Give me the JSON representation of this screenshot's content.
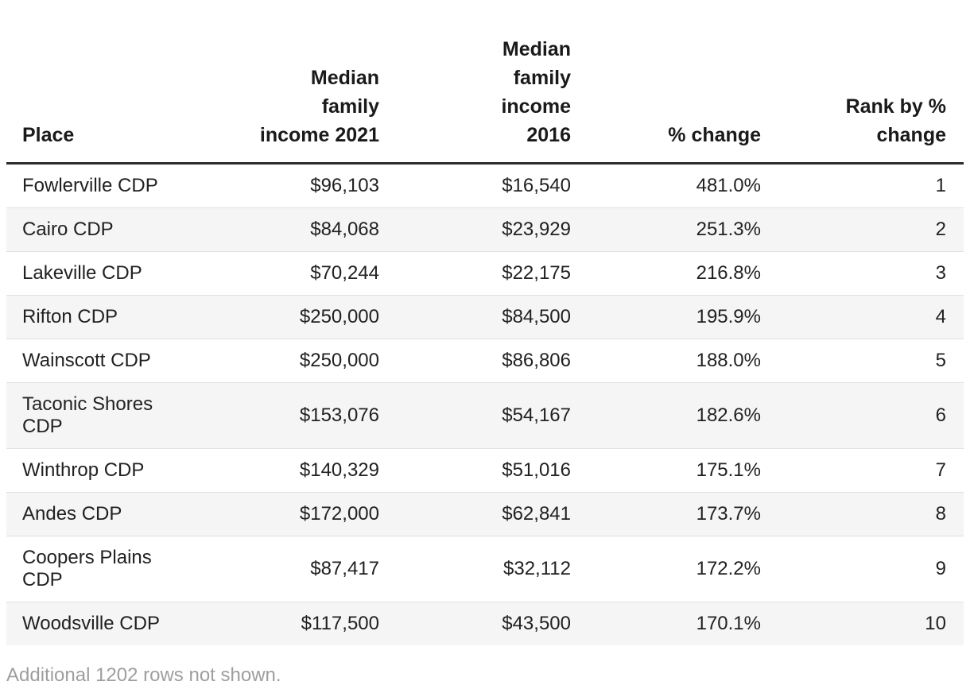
{
  "table": {
    "columns": [
      {
        "id": "place",
        "label": "Place",
        "full_name": "Place",
        "align": "left"
      },
      {
        "id": "income2021",
        "label": "Median\nfamily\nincome 2021",
        "full_name": "Median family income 2021",
        "align": "right"
      },
      {
        "id": "income2016",
        "label": "Median\nfamily\nincome\n2016",
        "full_name": "Median family income 2016",
        "align": "right"
      },
      {
        "id": "pctchange",
        "label": "% change",
        "full_name": "% change",
        "align": "right"
      },
      {
        "id": "rank",
        "label": "Rank by %\nchange",
        "full_name": "Rank by % change",
        "align": "right"
      }
    ],
    "rows": [
      [
        "Fowlerville CDP",
        "$96,103",
        "$16,540",
        "481.0%",
        "1"
      ],
      [
        "Cairo CDP",
        "$84,068",
        "$23,929",
        "251.3%",
        "2"
      ],
      [
        "Lakeville CDP",
        "$70,244",
        "$22,175",
        "216.8%",
        "3"
      ],
      [
        "Rifton CDP",
        "$250,000",
        "$84,500",
        "195.9%",
        "4"
      ],
      [
        "Wainscott CDP",
        "$250,000",
        "$86,806",
        "188.0%",
        "5"
      ],
      [
        "Taconic Shores CDP",
        "$153,076",
        "$54,167",
        "182.6%",
        "6"
      ],
      [
        "Winthrop CDP",
        "$140,329",
        "$51,016",
        "175.1%",
        "7"
      ],
      [
        "Andes CDP",
        "$172,000",
        "$62,841",
        "173.7%",
        "8"
      ],
      [
        "Coopers Plains CDP",
        "$87,417",
        "$32,112",
        "172.2%",
        "9"
      ],
      [
        "Woodsville CDP",
        "$117,500",
        "$43,500",
        "170.1%",
        "10"
      ]
    ],
    "footnote": "Additional 1202 rows not shown."
  },
  "chart_data": {
    "type": "table",
    "title": "",
    "columns": [
      "Place",
      "Median family income 2021",
      "Median family income 2016",
      "% change",
      "Rank by % change"
    ],
    "rows": [
      {
        "place": "Fowlerville CDP",
        "median_family_income_2021": 96103,
        "median_family_income_2016": 16540,
        "pct_change": 481.0,
        "rank": 1
      },
      {
        "place": "Cairo CDP",
        "median_family_income_2021": 84068,
        "median_family_income_2016": 23929,
        "pct_change": 251.3,
        "rank": 2
      },
      {
        "place": "Lakeville CDP",
        "median_family_income_2021": 70244,
        "median_family_income_2016": 22175,
        "pct_change": 216.8,
        "rank": 3
      },
      {
        "place": "Rifton CDP",
        "median_family_income_2021": 250000,
        "median_family_income_2016": 84500,
        "pct_change": 195.9,
        "rank": 4
      },
      {
        "place": "Wainscott CDP",
        "median_family_income_2021": 250000,
        "median_family_income_2016": 86806,
        "pct_change": 188.0,
        "rank": 5
      },
      {
        "place": "Taconic Shores CDP",
        "median_family_income_2021": 153076,
        "median_family_income_2016": 54167,
        "pct_change": 182.6,
        "rank": 6
      },
      {
        "place": "Winthrop CDP",
        "median_family_income_2021": 140329,
        "median_family_income_2016": 51016,
        "pct_change": 175.1,
        "rank": 7
      },
      {
        "place": "Andes CDP",
        "median_family_income_2021": 172000,
        "median_family_income_2016": 62841,
        "pct_change": 173.7,
        "rank": 8
      },
      {
        "place": "Coopers Plains CDP",
        "median_family_income_2021": 87417,
        "median_family_income_2016": 32112,
        "pct_change": 172.2,
        "rank": 9
      },
      {
        "place": "Woodsville CDP",
        "median_family_income_2021": 117500,
        "median_family_income_2016": 43500,
        "pct_change": 170.1,
        "rank": 10
      }
    ],
    "footnote": "Additional 1202 rows not shown."
  },
  "colors": {
    "background": "#ffffff",
    "header_text": "#1a1a1a",
    "body_text": "#212121",
    "header_rule": "#2b2b2b",
    "row_divider": "#e0e0e0",
    "row_stripe": "#f5f5f5",
    "footnote_text": "#9e9e9e"
  }
}
